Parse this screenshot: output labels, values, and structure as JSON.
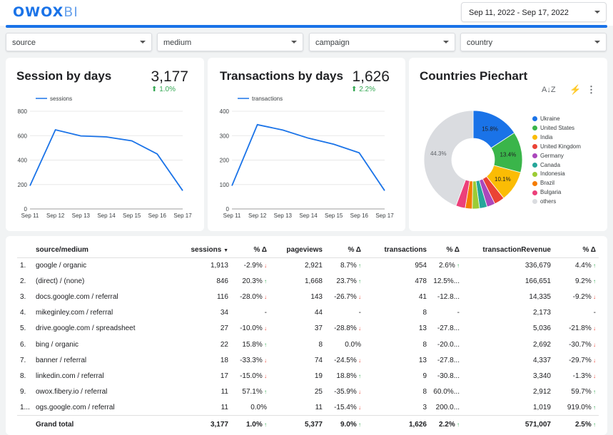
{
  "header": {
    "logo_main": "OWOX",
    "logo_sub": "BI",
    "date_range": "Sep 11, 2022 - Sep 17, 2022"
  },
  "filters": [
    "source",
    "medium",
    "campaign",
    "country"
  ],
  "colors": {
    "accent": "#1a73e8",
    "up": "#34a853",
    "down": "#ea4335"
  },
  "session_card": {
    "title": "Session by days",
    "kpi": "3,177",
    "delta": "1.0%",
    "delta_icon": "arrow-up-icon"
  },
  "transactions_card": {
    "title": "Transactions by days",
    "kpi": "1,626",
    "delta": "2.2%",
    "delta_icon": "arrow-up-icon"
  },
  "pie_card": {
    "title": "Countries Piechart",
    "tool_icons": [
      "sort-az-icon",
      "lightning-icon",
      "more-vert-icon"
    ],
    "sort_label": "A↓Z"
  },
  "chart_data": [
    {
      "type": "line",
      "x": [
        "Sep 11",
        "Sep 12",
        "Sep 13",
        "Sep 14",
        "Sep 15",
        "Sep 16",
        "Sep 17"
      ],
      "series": [
        {
          "name": "sessions",
          "values": [
            190,
            648,
            598,
            590,
            558,
            450,
            150
          ]
        }
      ],
      "yticks": [
        "0",
        "200",
        "400",
        "600",
        "800"
      ],
      "ylim": [
        0,
        800
      ],
      "grid": true,
      "legend": "top-left"
    },
    {
      "type": "line",
      "x": [
        "Sep 11",
        "Sep 12",
        "Sep 13",
        "Sep 14",
        "Sep 15",
        "Sep 16",
        "Sep 17"
      ],
      "series": [
        {
          "name": "transactions",
          "values": [
            95,
            345,
            323,
            290,
            265,
            230,
            75
          ]
        }
      ],
      "yticks": [
        "0",
        "100",
        "200",
        "300",
        "400"
      ],
      "ylim": [
        0,
        400
      ],
      "grid": true,
      "legend": "top-left"
    },
    {
      "type": "pie",
      "donut": true,
      "legend": "right",
      "slices": [
        {
          "name": "Ukraine",
          "value": 15.8,
          "color": "#1a73e8",
          "label": "15.8%"
        },
        {
          "name": "United States",
          "value": 13.4,
          "color": "#3ab54a",
          "label": "13.4%"
        },
        {
          "name": "India",
          "value": 10.1,
          "color": "#fbbc04",
          "label": "10.1%"
        },
        {
          "name": "United Kingdom",
          "value": 3.4,
          "color": "#ea4335",
          "label": ""
        },
        {
          "name": "Germany",
          "value": 2.7,
          "color": "#ab47bc",
          "label": ""
        },
        {
          "name": "Canada",
          "value": 2.5,
          "color": "#26a69a",
          "label": ""
        },
        {
          "name": "Indonesia",
          "value": 2.4,
          "color": "#9ccc35",
          "label": ""
        },
        {
          "name": "Brazil",
          "value": 2.3,
          "color": "#f57c00",
          "label": ""
        },
        {
          "name": "Bulgaria",
          "value": 3.1,
          "color": "#ec407a",
          "label": ""
        },
        {
          "name": "others",
          "value": 44.3,
          "color": "#dadce0",
          "label": "44.3%"
        }
      ]
    }
  ],
  "table": {
    "headers": {
      "source": "source/medium",
      "sessions": "sessions",
      "sort_icon": "sort-desc-icon",
      "pct": "% Δ",
      "pageviews": "pageviews",
      "transactions": "transactions",
      "revenue": "transactionRevenue"
    },
    "rows": [
      {
        "n": "1.",
        "source": "google / organic",
        "sessions": "1,913",
        "sd": "-2.9%",
        "sdd": "down",
        "pageviews": "2,921",
        "pd": "8.7%",
        "pdd": "up",
        "transactions": "954",
        "td": "2.6%",
        "tdd": "up",
        "revenue": "336,679",
        "rd": "4.4%",
        "rdd": "up"
      },
      {
        "n": "2.",
        "source": "(direct) / (none)",
        "sessions": "846",
        "sd": "20.3%",
        "sdd": "up",
        "pageviews": "1,668",
        "pd": "23.7%",
        "pdd": "up",
        "transactions": "478",
        "td": "12.5%...",
        "tdd": "",
        "revenue": "166,651",
        "rd": "9.2%",
        "rdd": "up"
      },
      {
        "n": "3.",
        "source": "docs.google.com / referral",
        "sessions": "116",
        "sd": "-28.0%",
        "sdd": "down",
        "pageviews": "143",
        "pd": "-26.7%",
        "pdd": "down",
        "transactions": "41",
        "td": "-12.8...",
        "tdd": "",
        "revenue": "14,335",
        "rd": "-9.2%",
        "rdd": "down"
      },
      {
        "n": "4.",
        "source": "mikeginley.com / referral",
        "sessions": "34",
        "sd": "-",
        "sdd": "",
        "pageviews": "44",
        "pd": "-",
        "pdd": "",
        "transactions": "8",
        "td": "-",
        "tdd": "",
        "revenue": "2,173",
        "rd": "-",
        "rdd": ""
      },
      {
        "n": "5.",
        "source": "drive.google.com / spreadsheet",
        "sessions": "27",
        "sd": "-10.0%",
        "sdd": "down",
        "pageviews": "37",
        "pd": "-28.8%",
        "pdd": "down",
        "transactions": "13",
        "td": "-27.8...",
        "tdd": "",
        "revenue": "5,036",
        "rd": "-21.8%",
        "rdd": "down"
      },
      {
        "n": "6.",
        "source": "bing / organic",
        "sessions": "22",
        "sd": "15.8%",
        "sdd": "up",
        "pageviews": "8",
        "pd": "0.0%",
        "pdd": "",
        "transactions": "8",
        "td": "-20.0...",
        "tdd": "",
        "revenue": "2,692",
        "rd": "-30.7%",
        "rdd": "down"
      },
      {
        "n": "7.",
        "source": "banner / referral",
        "sessions": "18",
        "sd": "-33.3%",
        "sdd": "down",
        "pageviews": "74",
        "pd": "-24.5%",
        "pdd": "down",
        "transactions": "13",
        "td": "-27.8...",
        "tdd": "",
        "revenue": "4,337",
        "rd": "-29.7%",
        "rdd": "down"
      },
      {
        "n": "8.",
        "source": "linkedin.com / referral",
        "sessions": "17",
        "sd": "-15.0%",
        "sdd": "down",
        "pageviews": "19",
        "pd": "18.8%",
        "pdd": "up",
        "transactions": "9",
        "td": "-30.8...",
        "tdd": "",
        "revenue": "3,340",
        "rd": "-1.3%",
        "rdd": "down"
      },
      {
        "n": "9.",
        "source": "owox.fibery.io / referral",
        "sessions": "11",
        "sd": "57.1%",
        "sdd": "up",
        "pageviews": "25",
        "pd": "-35.9%",
        "pdd": "down",
        "transactions": "8",
        "td": "60.0%...",
        "tdd": "",
        "revenue": "2,912",
        "rd": "59.7%",
        "rdd": "up"
      },
      {
        "n": "1...",
        "source": "ogs.google.com / referral",
        "sessions": "11",
        "sd": "0.0%",
        "sdd": "",
        "pageviews": "11",
        "pd": "-15.4%",
        "pdd": "down",
        "transactions": "3",
        "td": "200.0...",
        "tdd": "",
        "revenue": "1,019",
        "rd": "919.0%",
        "rdd": "up"
      }
    ],
    "total": {
      "label": "Grand total",
      "sessions": "3,177",
      "sd": "1.0%",
      "sdd": "up",
      "pageviews": "5,377",
      "pd": "9.0%",
      "pdd": "up",
      "transactions": "1,626",
      "td": "2.2%",
      "tdd": "up",
      "revenue": "571,007",
      "rd": "2.5%",
      "rdd": "up"
    }
  }
}
